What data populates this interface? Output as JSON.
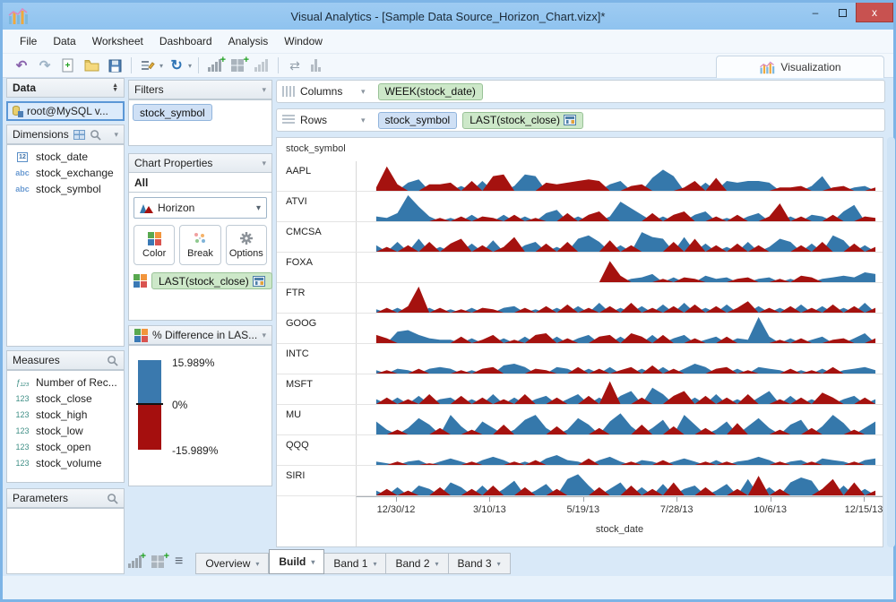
{
  "window": {
    "title": "Visual Analytics - [Sample Data Source_Horizon_Chart.vizx]*",
    "controls": {
      "minimize": "–",
      "close": "x"
    }
  },
  "menu": {
    "items": [
      "File",
      "Data",
      "Worksheet",
      "Dashboard",
      "Analysis",
      "Window"
    ]
  },
  "toolbar": {
    "visualization_label": "Visualization",
    "icons": [
      "undo",
      "redo",
      "new-file",
      "open-file",
      "save",
      "format-wand",
      "refresh",
      "new-worksheet",
      "new-dashboard",
      "show-me",
      "swap-axes",
      "fit-bars"
    ]
  },
  "icon_glyphs": {
    "undo": "↶",
    "redo": "↷",
    "refresh": "↻",
    "swap": "⇄",
    "caret": "▾",
    "list": "≡",
    "minimize": "–",
    "date_box": "12",
    "string_field": "abc",
    "number_field": "123",
    "calc_field": "ƒ₁₂₃"
  },
  "data_panel": {
    "title": "Data",
    "connection": "root@MySQL v...",
    "dimensions": {
      "label": "Dimensions",
      "items": [
        {
          "name": "stock_date",
          "type": "date"
        },
        {
          "name": "stock_exchange",
          "type": "string"
        },
        {
          "name": "stock_symbol",
          "type": "string"
        }
      ]
    },
    "measures": {
      "label": "Measures",
      "items": [
        {
          "name": "Number of Rec...",
          "type": "calc"
        },
        {
          "name": "stock_close",
          "type": "number"
        },
        {
          "name": "stock_high",
          "type": "number"
        },
        {
          "name": "stock_low",
          "type": "number"
        },
        {
          "name": "stock_open",
          "type": "number"
        },
        {
          "name": "stock_volume",
          "type": "number"
        }
      ]
    },
    "parameters": {
      "label": "Parameters"
    }
  },
  "filters_panel": {
    "title": "Filters",
    "pills": [
      {
        "text": "stock_symbol",
        "kind": "blue"
      }
    ]
  },
  "chart_properties": {
    "title": "Chart Properties",
    "scope": "All",
    "chart_type": "Horizon",
    "buttons": [
      "Color",
      "Break",
      "Options"
    ],
    "encoding_pill": "LAST(stock_close)"
  },
  "legend": {
    "title": "% Difference in LAS...",
    "max_label": "15.989%",
    "mid_label": "0%",
    "min_label": "-15.989%",
    "positive_color": "#3a79ae",
    "negative_color": "#a50f0e"
  },
  "shelves": {
    "columns": {
      "label": "Columns",
      "pills": [
        {
          "text": "WEEK(stock_date)",
          "kind": "green"
        }
      ]
    },
    "rows": {
      "label": "Rows",
      "pills": [
        {
          "text": "stock_symbol",
          "kind": "blue"
        },
        {
          "text": "LAST(stock_close)",
          "kind": "green",
          "icon": "calculator"
        }
      ]
    }
  },
  "bottom_bar": {
    "tabs": [
      {
        "label": "Overview",
        "active": false
      },
      {
        "label": "Build",
        "active": true
      },
      {
        "label": "Band 1",
        "active": false
      },
      {
        "label": "Band 2",
        "active": false
      },
      {
        "label": "Band 3",
        "active": false
      }
    ]
  },
  "chart_data": {
    "type": "area",
    "subtype": "horizon",
    "row_header": "stock_symbol",
    "xlabel": "stock_date",
    "x_ticks": [
      "12/30/12",
      "3/10/13",
      "5/19/13",
      "7/28/13",
      "10/6/13",
      "12/15/13"
    ],
    "ylabel": "% Difference in LAST(stock_close)",
    "value_range": [
      -15.989,
      15.989
    ],
    "colors": {
      "positive": "#3578ab",
      "negative": "#a5120f"
    },
    "series": [
      {
        "name": "AAPL",
        "values": [
          -2,
          -15,
          -4,
          5,
          7,
          -4,
          -4,
          -5,
          3,
          -6,
          6,
          -9,
          -10,
          3,
          10,
          9,
          -5,
          -4,
          -5,
          -6,
          -7,
          -6,
          4,
          6,
          -3,
          -4,
          8,
          13,
          9,
          -2,
          -6,
          5,
          -8,
          6,
          5,
          6,
          6,
          5,
          -2,
          -2,
          -3,
          3,
          9,
          -2,
          -3,
          2,
          3,
          -2
        ]
      },
      {
        "name": "ATVI",
        "values": [
          3,
          2,
          5,
          16,
          9,
          3,
          -2,
          2,
          -3,
          4,
          -3,
          -2,
          4,
          -4,
          3,
          -2,
          5,
          7,
          -5,
          3,
          -4,
          -6,
          3,
          12,
          8,
          4,
          -5,
          3,
          -4,
          -6,
          4,
          6,
          -3,
          2,
          -4,
          3,
          5,
          -3,
          -11,
          3,
          -3,
          4,
          3,
          -4,
          6,
          10,
          -3,
          -2
        ]
      },
      {
        "name": "CMCSA",
        "values": [
          4,
          -3,
          6,
          -4,
          8,
          -6,
          3,
          -5,
          -8,
          5,
          -4,
          7,
          -3,
          -9,
          4,
          6,
          -5,
          3,
          -6,
          8,
          10,
          6,
          -7,
          4,
          -4,
          12,
          9,
          8,
          -6,
          9,
          -8,
          5,
          -4,
          3,
          -5,
          6,
          -4,
          3,
          8,
          6,
          -4,
          5,
          -6,
          10,
          7,
          -5,
          4,
          -3
        ]
      },
      {
        "name": "FOXA",
        "values": [
          0,
          0,
          0,
          0,
          0,
          0,
          0,
          0,
          0,
          0,
          0,
          0,
          0,
          0,
          0,
          0,
          0,
          0,
          0,
          0,
          0,
          0,
          -13,
          -4,
          2,
          3,
          5,
          -2,
          3,
          -3,
          -2,
          4,
          2,
          3,
          -2,
          -3,
          2,
          3,
          -2,
          2,
          -4,
          -3,
          2,
          3,
          4,
          3,
          6,
          5
        ]
      },
      {
        "name": "FTR",
        "values": [
          2,
          -3,
          3,
          -4,
          -16,
          3,
          -3,
          2,
          -2,
          3,
          -3,
          -2,
          3,
          4,
          -3,
          2,
          -4,
          3,
          -5,
          4,
          -3,
          6,
          -4,
          3,
          -6,
          4,
          -3,
          5,
          -4,
          6,
          -5,
          3,
          -4,
          5,
          -3,
          -7,
          4,
          -3,
          3,
          -4,
          5,
          -3,
          4,
          -5,
          3,
          -4,
          6,
          -3
        ]
      },
      {
        "name": "GOOG",
        "values": [
          -5,
          -3,
          7,
          8,
          5,
          3,
          2,
          2,
          -4,
          3,
          -2,
          -5,
          3,
          -2,
          4,
          -5,
          -6,
          4,
          -3,
          3,
          5,
          -4,
          -5,
          4,
          -6,
          -4,
          5,
          -5,
          3,
          5,
          -3,
          2,
          4,
          -4,
          3,
          2,
          16,
          4,
          -2,
          3,
          -3,
          2,
          4,
          -2,
          -3,
          3,
          6,
          -3
        ]
      },
      {
        "name": "INTC",
        "values": [
          2,
          -2,
          3,
          2,
          -3,
          3,
          4,
          3,
          -2,
          2,
          -3,
          -4,
          5,
          6,
          4,
          -3,
          -2,
          4,
          3,
          -4,
          3,
          -3,
          4,
          -2,
          -4,
          3,
          -5,
          4,
          -3,
          3,
          6,
          4,
          -3,
          -4,
          3,
          -2,
          4,
          3,
          2,
          -3,
          2,
          -2,
          3,
          -4,
          2,
          3,
          4,
          2
        ]
      },
      {
        "name": "MSFT",
        "values": [
          3,
          -4,
          4,
          -3,
          5,
          -6,
          3,
          4,
          -5,
          3,
          -4,
          6,
          -3,
          4,
          -6,
          3,
          5,
          -4,
          3,
          6,
          -5,
          4,
          -14,
          5,
          8,
          -4,
          10,
          6,
          -5,
          -8,
          4,
          -5,
          6,
          -4,
          3,
          -6,
          4,
          8,
          -3,
          5,
          -4,
          3,
          -7,
          -4,
          3,
          5,
          -4,
          3
        ]
      },
      {
        "name": "MU",
        "values": [
          8,
          3,
          -3,
          4,
          10,
          6,
          -4,
          12,
          5,
          -3,
          8,
          4,
          -6,
          3,
          9,
          12,
          4,
          -5,
          3,
          10,
          6,
          -4,
          8,
          13,
          5,
          -6,
          4,
          9,
          -5,
          12,
          6,
          -4,
          3,
          8,
          -7,
          5,
          10,
          4,
          -3,
          6,
          9,
          -4,
          5,
          12,
          7,
          -3,
          4,
          8
        ]
      },
      {
        "name": "QQQ",
        "values": [
          2,
          1,
          -2,
          2,
          3,
          -1,
          2,
          4,
          2,
          -2,
          3,
          5,
          3,
          -2,
          2,
          -3,
          4,
          6,
          3,
          2,
          -4,
          3,
          5,
          2,
          -2,
          3,
          2,
          -3,
          2,
          4,
          2,
          -2,
          3,
          -2,
          2,
          3,
          5,
          3,
          -2,
          2,
          3,
          -2,
          4,
          3,
          2,
          -2,
          3,
          4
        ]
      },
      {
        "name": "SIRI",
        "values": [
          3,
          -4,
          5,
          -3,
          6,
          4,
          -5,
          8,
          5,
          -4,
          6,
          -6,
          4,
          9,
          -5,
          3,
          7,
          -4,
          10,
          13,
          6,
          -5,
          4,
          8,
          -6,
          5,
          -4,
          7,
          -8,
          4,
          6,
          -5,
          3,
          7,
          -4,
          10,
          -12,
          5,
          -4,
          8,
          11,
          9,
          -4,
          -10,
          6,
          -8,
          4,
          -3
        ]
      }
    ]
  }
}
